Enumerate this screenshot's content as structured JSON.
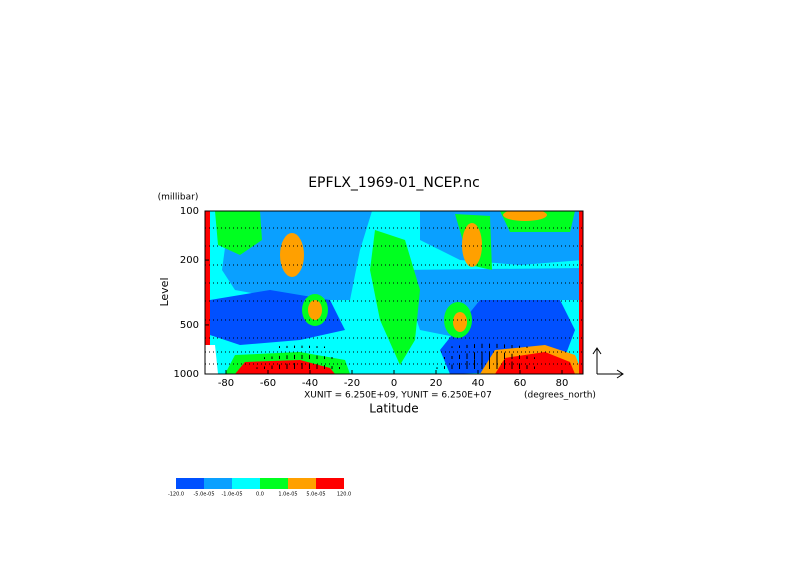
{
  "chart_data": {
    "type": "contour",
    "title": "EPFLX_1969-01_NCEP.nc",
    "x_label": "Latitude",
    "y_label": "Level",
    "y_unit": "(millibar)",
    "x_unit": "(degrees_north)",
    "annotation": "XUNIT = 6.250E+09, YUNIT = 6.250E+07",
    "xlim": [
      -90,
      90
    ],
    "xticks": [
      -80,
      -60,
      -40,
      -20,
      0,
      20,
      40,
      60,
      80
    ],
    "ylim": [
      1000,
      100
    ],
    "yticks": [
      100,
      200,
      500,
      1000
    ],
    "log_y": true,
    "levels": [
      {
        "value": -120,
        "label": "-120.0"
      },
      {
        "value": -5e-05,
        "label": "-5.0e-05"
      },
      {
        "value": -1e-05,
        "label": "-1.0e-05"
      },
      {
        "value": 0,
        "label": "0.0"
      },
      {
        "value": 1e-05,
        "label": "1.0e-05"
      },
      {
        "value": 5e-05,
        "label": "5.0e-05"
      },
      {
        "value": 120,
        "label": "120.0"
      }
    ],
    "colors": [
      "#0050ff",
      "#0aa0ff",
      "#00ffff",
      "#00ff20",
      "#ffa000",
      "#ff0000"
    ]
  }
}
